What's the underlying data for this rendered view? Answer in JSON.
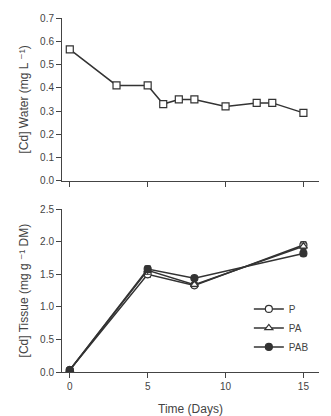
{
  "chart_data": [
    {
      "type": "line",
      "x": [
        0,
        3,
        5,
        6,
        7,
        8,
        10,
        12,
        13,
        15
      ],
      "series": [
        {
          "values": [
            0.565,
            0.41,
            0.41,
            0.33,
            0.35,
            0.35,
            0.32,
            0.335,
            0.335,
            0.292
          ],
          "errors": [
            0.01,
            0.01,
            0.01,
            0.01,
            0.01,
            0.01,
            0.008,
            0.01,
            0.01,
            0.012
          ],
          "color": "#333333",
          "marker": "square-open"
        }
      ],
      "ylabel": "[Cd] Water (mg L ⁻¹)",
      "xlim": [
        -0.5,
        16
      ],
      "xticks": [
        0,
        5,
        10,
        15
      ],
      "ylim": [
        0.0,
        0.7
      ],
      "yticks": [
        {
          "value": 0.0,
          "label": "0.0"
        },
        0.1,
        0.2,
        0.3,
        0.4,
        0.5,
        0.6,
        0.7
      ],
      "tick_labels": "y",
      "grid": false
    },
    {
      "type": "line",
      "x": [
        0,
        5,
        8,
        15
      ],
      "series": [
        {
          "name": "P",
          "values": [
            0.03,
            1.5,
            1.33,
            1.95
          ],
          "errors": [
            0.01,
            0.05,
            0.03,
            0.05
          ],
          "color": "#333333",
          "marker": "circle-open"
        },
        {
          "name": "PA",
          "values": [
            0.03,
            1.56,
            1.34,
            1.93
          ],
          "errors": [
            0.01,
            0.06,
            0.03,
            0.05
          ],
          "color": "#333333",
          "marker": "triangle-up-open"
        },
        {
          "name": "PAB",
          "values": [
            0.03,
            1.58,
            1.44,
            1.82
          ],
          "errors": [
            0.01,
            0.05,
            0.03,
            0.04
          ],
          "color": "#333333",
          "marker": "circle"
        }
      ],
      "xlabel": "Time (Days)",
      "ylabel": "[Cd] Tissue (mg g ⁻¹ DM)",
      "xlim": [
        -0.5,
        16
      ],
      "xticks": [
        0,
        5,
        10,
        15
      ],
      "ylim": [
        0.0,
        2.5
      ],
      "yticks": [
        {
          "value": 0.0,
          "label": "0.0"
        },
        0.5,
        {
          "value": 1.0,
          "label": "1.0"
        },
        1.5,
        {
          "value": 2.0,
          "label": "2.0"
        },
        2.5
      ],
      "legend": "lower right",
      "grid": false
    }
  ]
}
